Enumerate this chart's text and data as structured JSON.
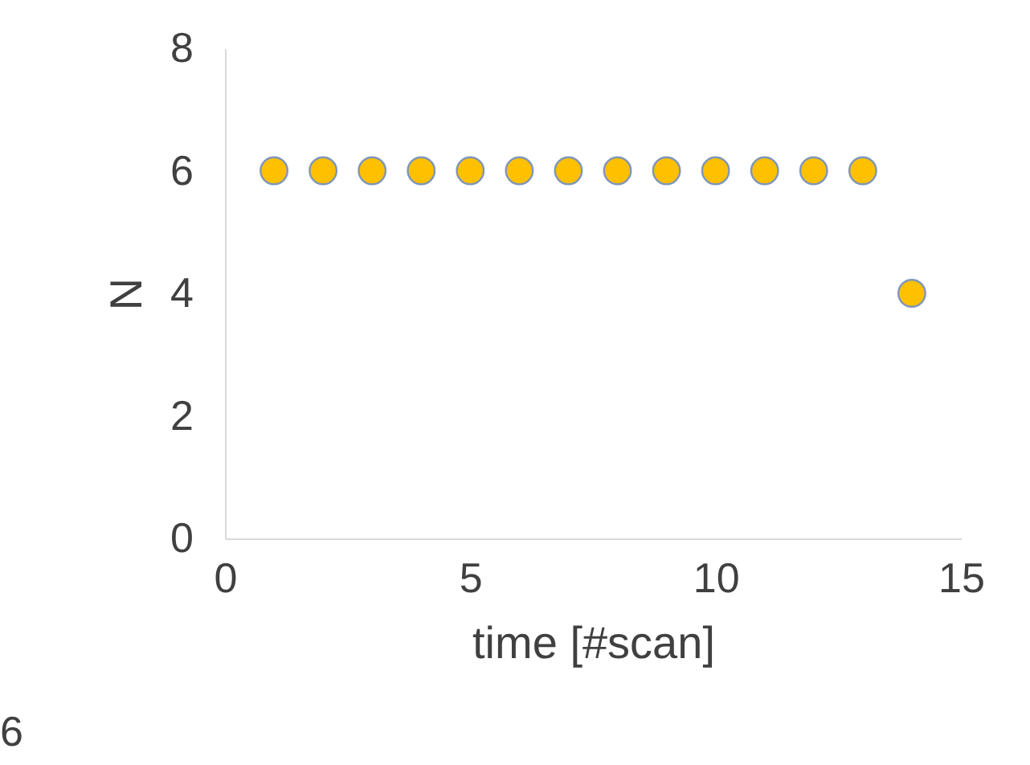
{
  "chart_data": {
    "type": "scatter",
    "xlabel": "time [#scan]",
    "ylabel": "N",
    "x": [
      1,
      2,
      3,
      4,
      5,
      6,
      7,
      8,
      9,
      10,
      11,
      12,
      13,
      14
    ],
    "series": [
      {
        "color": "#ffc000",
        "values": [
          6,
          6,
          6,
          6,
          6,
          6,
          6,
          6,
          6,
          6,
          6,
          6,
          6,
          4
        ]
      }
    ],
    "xlim": [
      0,
      15
    ],
    "xticks": [
      0,
      5,
      10,
      15
    ],
    "ylim": [
      0,
      8
    ],
    "yticks": [
      0,
      2,
      4,
      6,
      8
    ],
    "grid": false,
    "marker": "circle",
    "annotations": [
      "6"
    ]
  }
}
